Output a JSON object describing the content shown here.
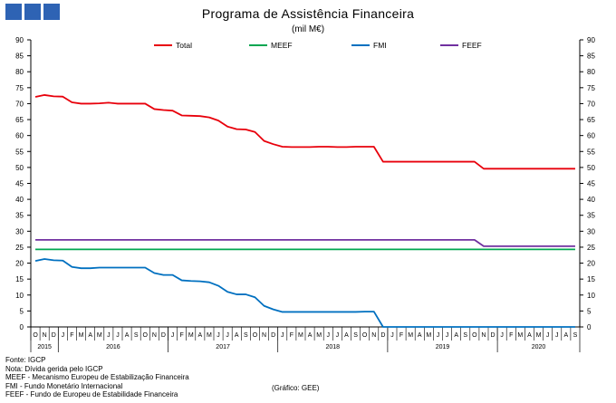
{
  "header": {
    "title": "Programa  de Assistência Financeira",
    "subtitle": "(mil M€)"
  },
  "notes": [
    "Fonte: IGCP",
    "Nota: Dívida gerida pelo IGCP",
    "MEEF - Mecanismo Europeu de Estabilização Financeira",
    "FMI - Fundo Monetário Internacional",
    "FEEF - Fundo de Europeu de Estabilidade Financeira"
  ],
  "source_label": "(Gráfico: GEE)",
  "colors": {
    "total": "#e8000b",
    "meef": "#00a650",
    "fmi": "#0070c0",
    "feef": "#7030a0",
    "axis": "#000000",
    "grid": "#000000",
    "logo": "#2e63b4"
  },
  "chart_data": {
    "type": "line",
    "title": "Programa  de Assistência Financeira",
    "subtitle": "(mil M€)",
    "ylim": [
      0,
      90
    ],
    "yticks": [
      0,
      5,
      10,
      15,
      20,
      25,
      30,
      35,
      40,
      45,
      50,
      55,
      60,
      65,
      70,
      75,
      80,
      85,
      90
    ],
    "y_axis_right": true,
    "grid": false,
    "legend": "top-center",
    "month_labels": [
      "O",
      "N",
      "D",
      "J",
      "F",
      "M",
      "A",
      "M",
      "J",
      "J",
      "A",
      "S",
      "O",
      "N",
      "D",
      "J",
      "F",
      "M",
      "A",
      "M",
      "J",
      "J",
      "A",
      "S",
      "O",
      "N",
      "D",
      "J",
      "F",
      "M",
      "A",
      "M",
      "J",
      "J",
      "A",
      "S",
      "O",
      "N",
      "D",
      "J",
      "F",
      "M",
      "A",
      "M",
      "J",
      "J",
      "A",
      "S",
      "O",
      "N",
      "D",
      "J",
      "F",
      "M",
      "A",
      "M",
      "J",
      "J",
      "A",
      "S"
    ],
    "year_groups": [
      {
        "label": "2015",
        "start": 0,
        "count": 3
      },
      {
        "label": "2016",
        "start": 3,
        "count": 12
      },
      {
        "label": "2017",
        "start": 15,
        "count": 12
      },
      {
        "label": "2018",
        "start": 27,
        "count": 12
      },
      {
        "label": "2019",
        "start": 39,
        "count": 12
      },
      {
        "label": "2020",
        "start": 51,
        "count": 9
      }
    ],
    "series": [
      {
        "name": "Total",
        "color": "#e8000b",
        "values": [
          72.1,
          72.7,
          72.3,
          72.2,
          70.4,
          70.0,
          70.0,
          70.1,
          70.3,
          70.0,
          70.0,
          70.0,
          70.0,
          68.3,
          68.0,
          67.8,
          66.3,
          66.2,
          66.1,
          65.7,
          64.7,
          62.8,
          62.0,
          61.9,
          61.1,
          58.3,
          57.3,
          56.5,
          56.4,
          56.4,
          56.4,
          56.5,
          56.5,
          56.4,
          56.4,
          56.5,
          56.5,
          56.5,
          51.8,
          51.8,
          51.8,
          51.8,
          51.8,
          51.8,
          51.8,
          51.8,
          51.8,
          51.8,
          51.8,
          49.6,
          49.6,
          49.6,
          49.6,
          49.6,
          49.6,
          49.6,
          49.6,
          49.6,
          49.6,
          49.6
        ]
      },
      {
        "name": "MEEF",
        "color": "#00a650",
        "values": [
          24.3,
          24.3,
          24.3,
          24.3,
          24.3,
          24.3,
          24.3,
          24.3,
          24.3,
          24.3,
          24.3,
          24.3,
          24.3,
          24.3,
          24.3,
          24.3,
          24.3,
          24.3,
          24.3,
          24.3,
          24.3,
          24.3,
          24.3,
          24.3,
          24.3,
          24.3,
          24.3,
          24.3,
          24.3,
          24.3,
          24.3,
          24.3,
          24.3,
          24.3,
          24.3,
          24.3,
          24.3,
          24.3,
          24.3,
          24.3,
          24.3,
          24.3,
          24.3,
          24.3,
          24.3,
          24.3,
          24.3,
          24.3,
          24.3,
          24.3,
          24.3,
          24.3,
          24.3,
          24.3,
          24.3,
          24.3,
          24.3,
          24.3,
          24.3,
          24.3
        ]
      },
      {
        "name": "FMI",
        "color": "#0070c0",
        "values": [
          20.7,
          21.3,
          20.9,
          20.8,
          18.8,
          18.4,
          18.4,
          18.6,
          18.6,
          18.6,
          18.6,
          18.6,
          18.6,
          16.9,
          16.3,
          16.3,
          14.6,
          14.4,
          14.3,
          14.0,
          12.9,
          11.0,
          10.2,
          10.2,
          9.3,
          6.6,
          5.5,
          4.7,
          4.7,
          4.7,
          4.7,
          4.7,
          4.7,
          4.7,
          4.7,
          4.7,
          4.8,
          4.8,
          0,
          0,
          0,
          0,
          0,
          0,
          0,
          0,
          0,
          0,
          0,
          0,
          0,
          0,
          0,
          0,
          0,
          0,
          0,
          0,
          0,
          0
        ]
      },
      {
        "name": "FEEF",
        "color": "#7030a0",
        "values": [
          27.3,
          27.3,
          27.3,
          27.3,
          27.3,
          27.3,
          27.3,
          27.3,
          27.3,
          27.3,
          27.3,
          27.3,
          27.3,
          27.3,
          27.3,
          27.3,
          27.3,
          27.3,
          27.3,
          27.3,
          27.3,
          27.3,
          27.3,
          27.3,
          27.3,
          27.3,
          27.3,
          27.3,
          27.3,
          27.3,
          27.3,
          27.3,
          27.3,
          27.3,
          27.3,
          27.3,
          27.3,
          27.3,
          27.3,
          27.3,
          27.3,
          27.3,
          27.3,
          27.3,
          27.3,
          27.3,
          27.3,
          27.3,
          27.3,
          25.3,
          25.3,
          25.3,
          25.3,
          25.3,
          25.3,
          25.3,
          25.3,
          25.3,
          25.3,
          25.3
        ]
      }
    ]
  }
}
